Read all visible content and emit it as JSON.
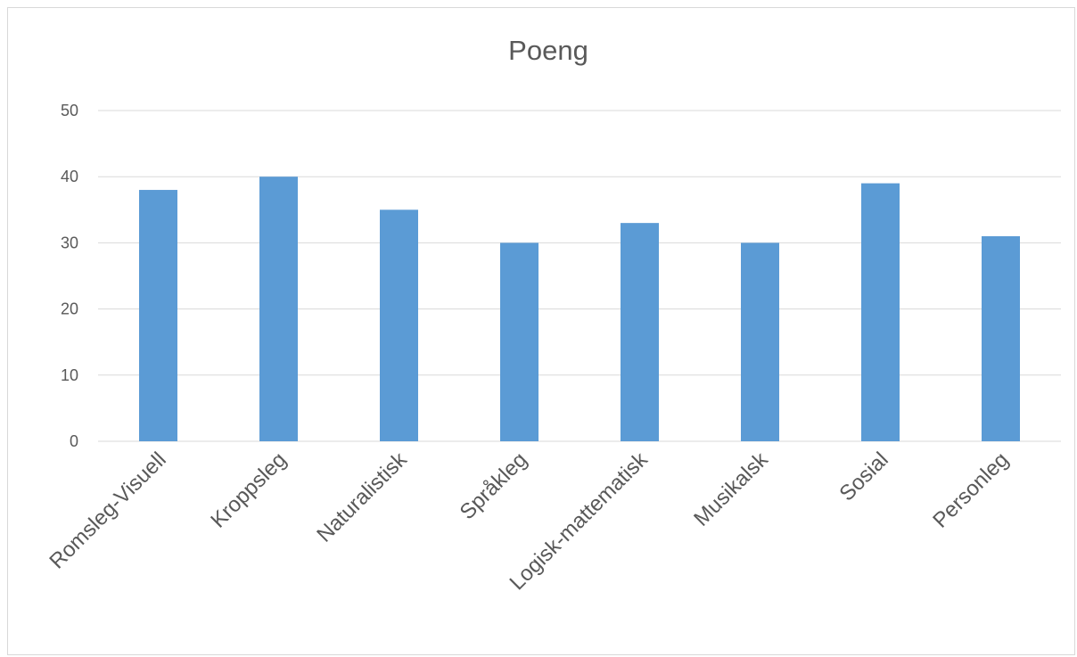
{
  "chart_data": {
    "type": "bar",
    "title": "Poeng",
    "categories": [
      "Romsleg-Visuell",
      "Kroppsleg",
      "Naturalistisk",
      "Språkleg",
      "Logisk-mattematisk",
      "Musikalsk",
      "Sosial",
      "Personleg"
    ],
    "values": [
      38,
      40,
      35,
      30,
      33,
      30,
      39,
      31
    ],
    "ylim": [
      0,
      50
    ],
    "yticks": [
      "0",
      "10",
      "20",
      "30",
      "40",
      "50"
    ],
    "grid": true,
    "legend": "none",
    "bar_color": "#5b9bd5"
  }
}
